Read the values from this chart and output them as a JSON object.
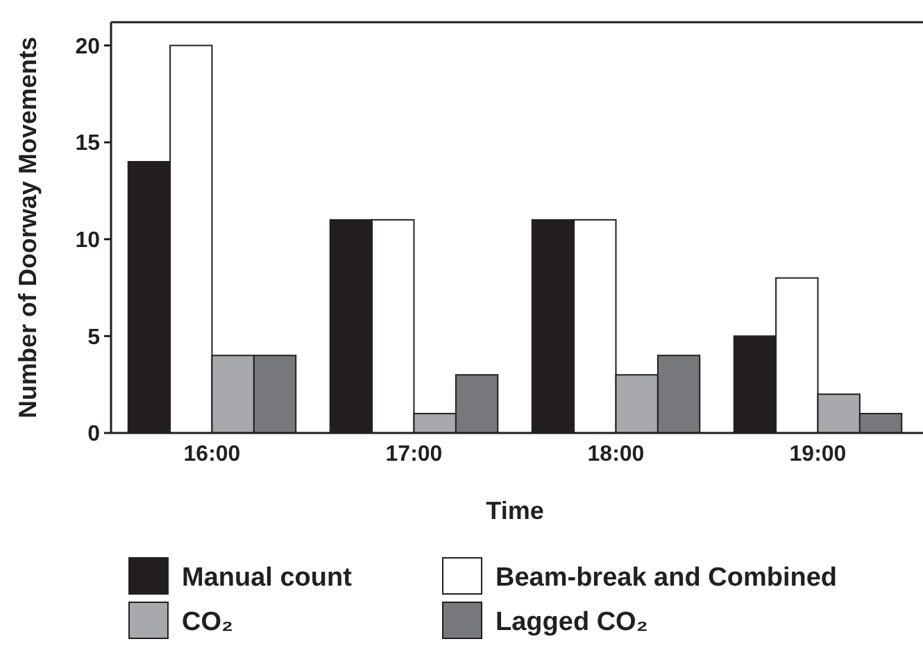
{
  "chart_data": {
    "type": "bar",
    "xlabel": "Time",
    "ylabel": "Number of Doorway Movements",
    "categories": [
      "16:00",
      "17:00",
      "18:00",
      "19:00"
    ],
    "series": [
      {
        "name": "Manual count",
        "color": "#231f20",
        "values": [
          14,
          11,
          11,
          5
        ]
      },
      {
        "name": "Beam-break and Combined",
        "color": "#ffffff",
        "values": [
          20,
          11,
          11,
          8
        ]
      },
      {
        "name": "CO₂",
        "color": "#a7a9ac",
        "values": [
          4,
          1,
          3,
          2
        ]
      },
      {
        "name": "Lagged CO₂",
        "color": "#77787b",
        "values": [
          4,
          3,
          4,
          1
        ]
      }
    ],
    "ylim": [
      0,
      21.2
    ],
    "yticks": [
      0,
      5,
      10,
      15,
      20
    ],
    "grid": false,
    "legend": "bottom"
  }
}
